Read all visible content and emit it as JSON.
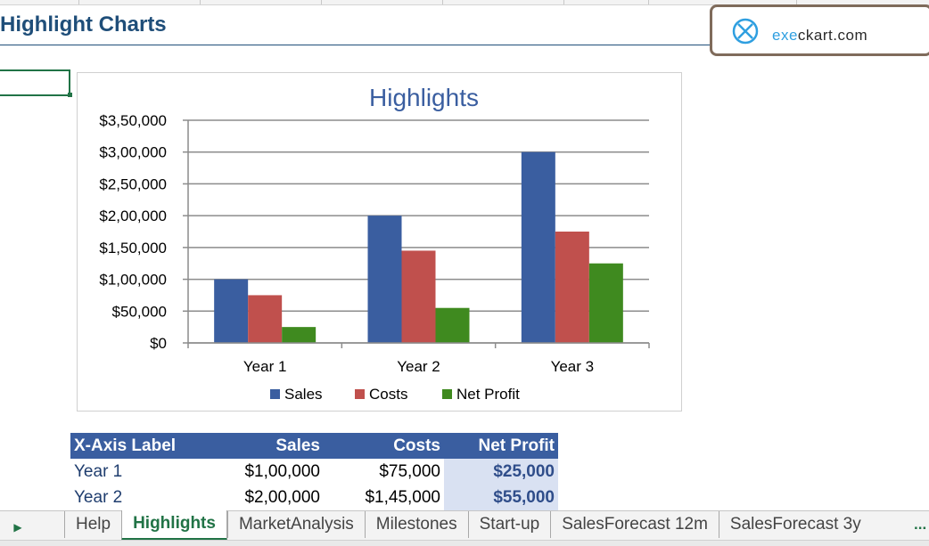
{
  "sheet": {
    "title": "Highlight Charts"
  },
  "logo": {
    "text_prefix": "exe",
    "text_rest": "ckart.com",
    "icon": "x-circle-logo-icon"
  },
  "chart_data": {
    "type": "bar",
    "title": "Highlights",
    "categories": [
      "Year 1",
      "Year 2",
      "Year 3"
    ],
    "series": [
      {
        "name": "Sales",
        "values": [
          100000,
          200000,
          300000
        ],
        "color": "#3a5ea0"
      },
      {
        "name": "Costs",
        "values": [
          75000,
          145000,
          175000
        ],
        "color": "#c0504d"
      },
      {
        "name": "Net Profit",
        "values": [
          25000,
          55000,
          125000
        ],
        "color": "#3f8a1f"
      }
    ],
    "ylim": [
      0,
      350000
    ],
    "ytick_labels": [
      "$0",
      "$50,000",
      "$1,00,000",
      "$1,50,000",
      "$2,00,000",
      "$2,50,000",
      "$3,00,000",
      "$3,50,000"
    ],
    "grid": true,
    "legend": "bottom",
    "xlabel": "",
    "ylabel": ""
  },
  "table": {
    "headers": [
      "X-Axis Label",
      "Sales",
      "Costs",
      "Net Profit"
    ],
    "rows": [
      [
        "Year 1",
        "$1,00,000",
        "$75,000",
        "$25,000"
      ],
      [
        "Year 2",
        "$2,00,000",
        "$1,45,000",
        "$55,000"
      ]
    ]
  },
  "tabs": {
    "items": [
      "Help",
      "Highlights",
      "MarketAnalysis",
      "Milestones",
      "Start-up",
      "SalesForecast 12m",
      "SalesForecast 3y"
    ],
    "active": "Highlights",
    "more": "..."
  }
}
